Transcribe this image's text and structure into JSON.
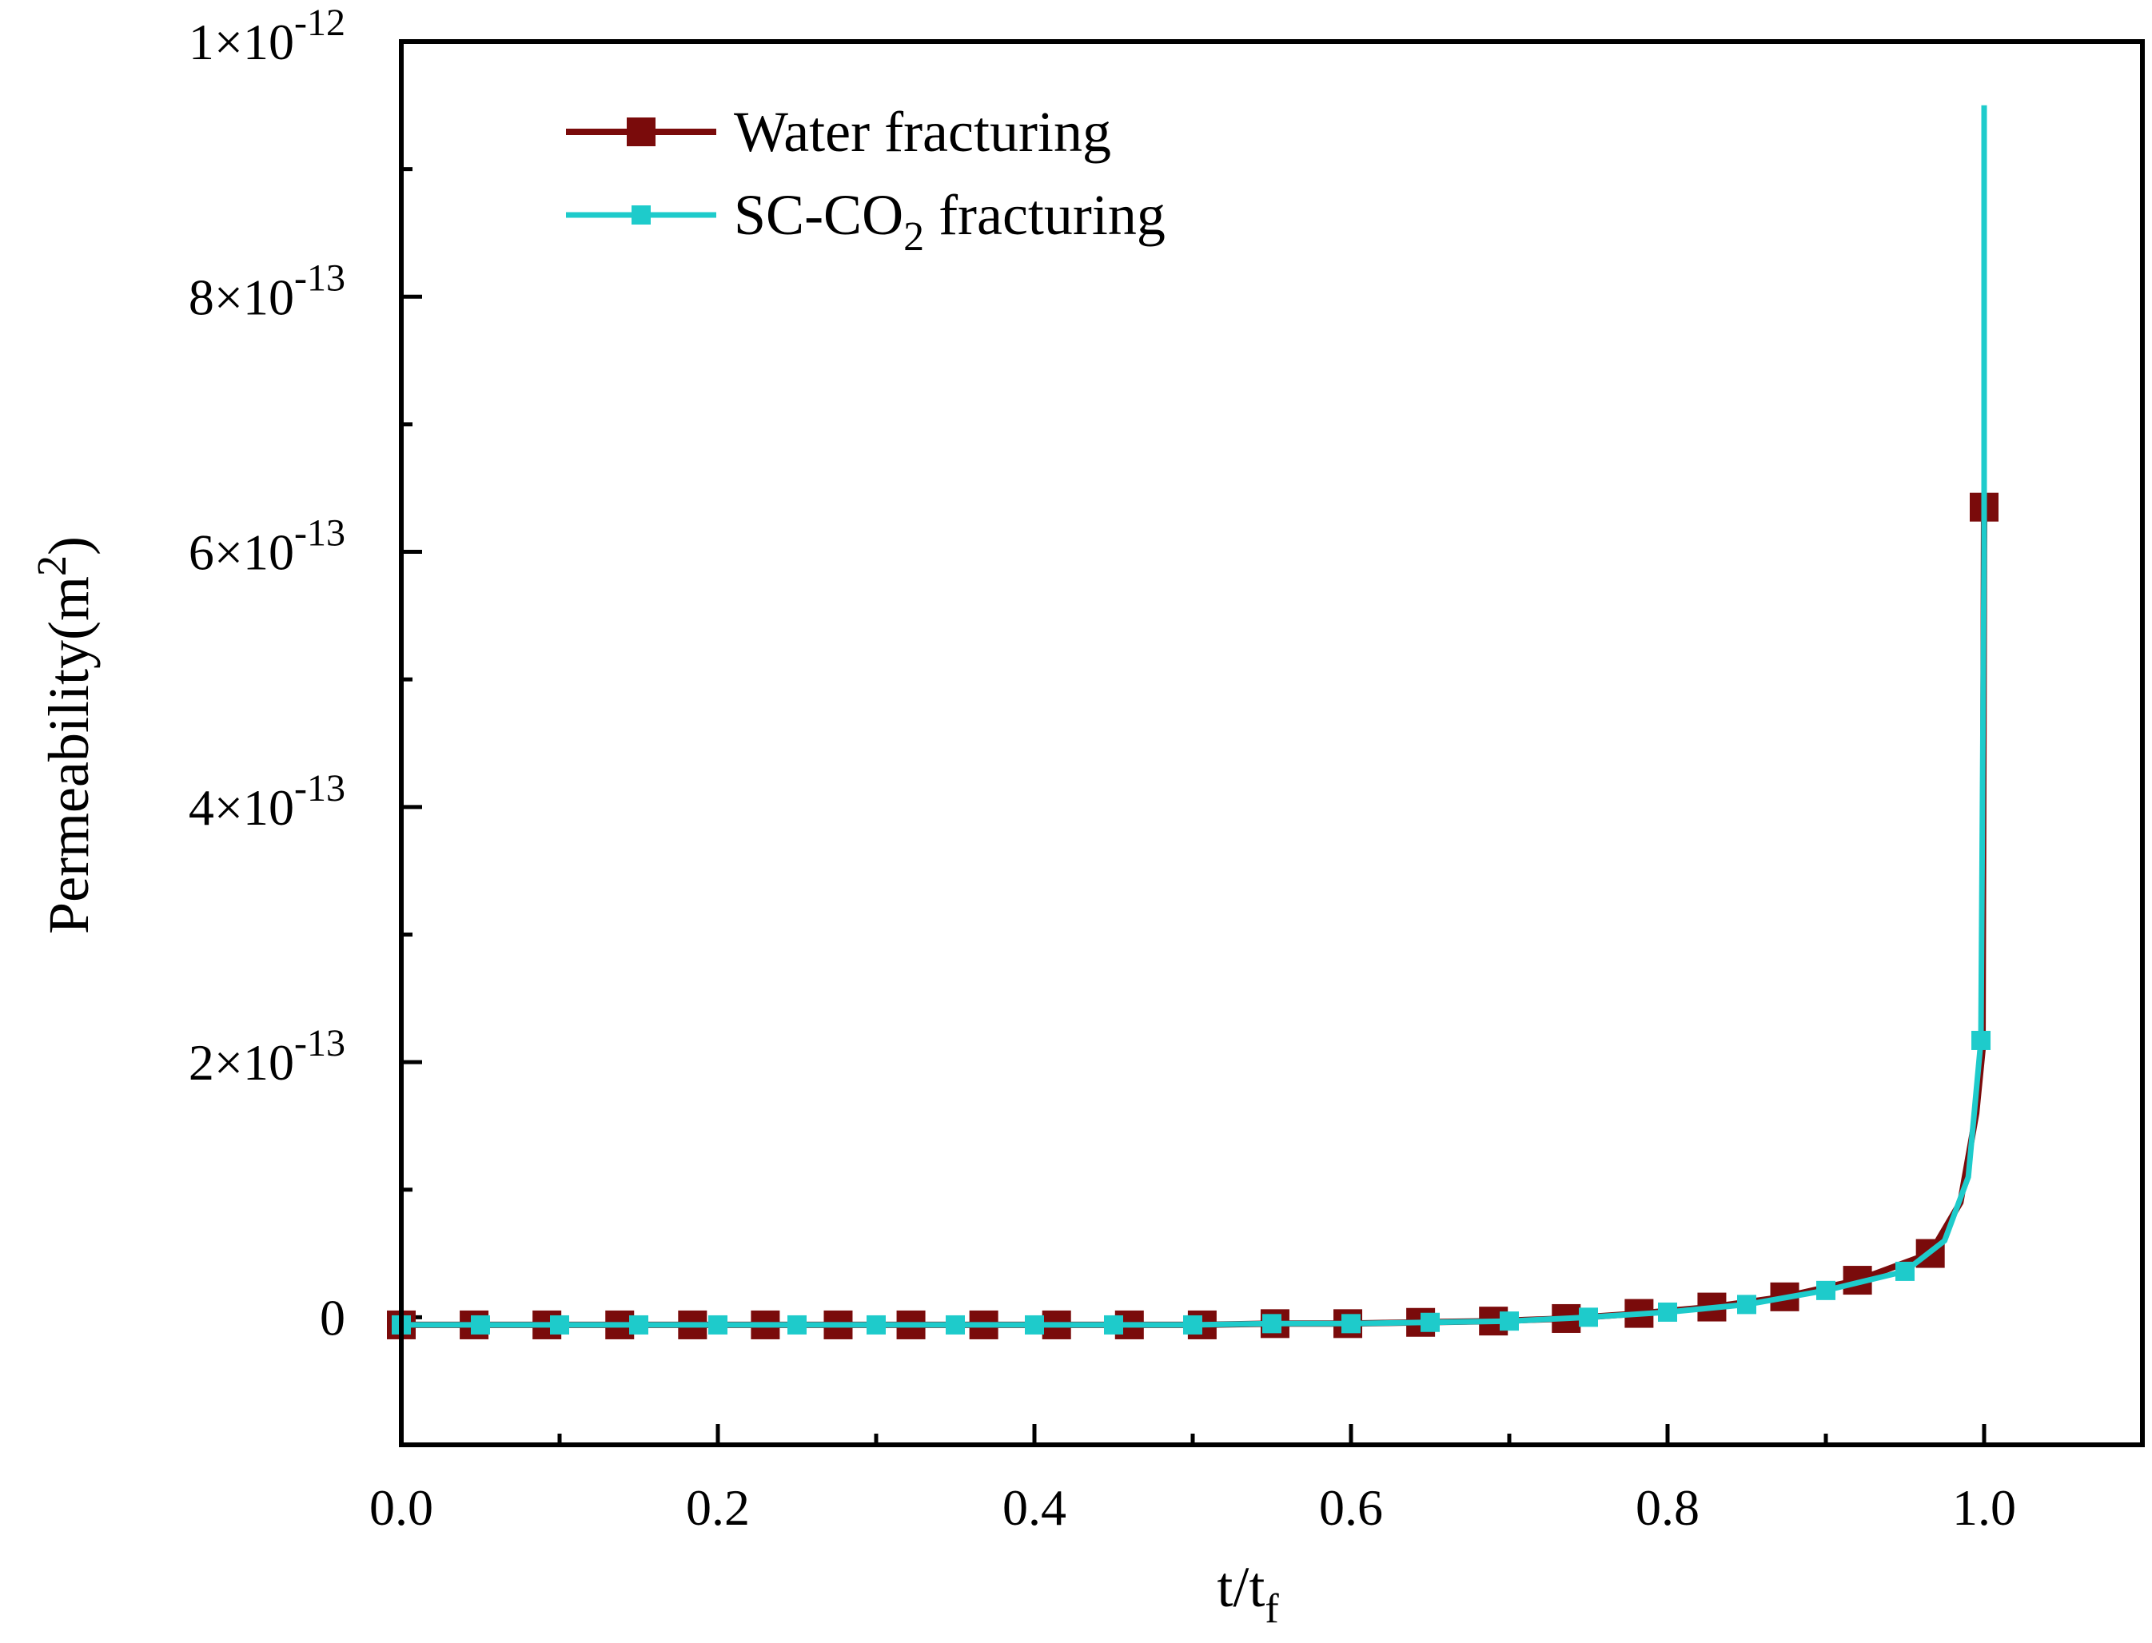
{
  "chart_data": {
    "type": "line",
    "xlabel": {
      "main": "t/t",
      "sub": "f"
    },
    "ylabel": {
      "main": "Permeability(m",
      "sup": "2",
      "end": ")"
    },
    "xlim": [
      0.0,
      1.1
    ],
    "ylim": [
      -1e-13,
      1e-12
    ],
    "x_ticks": [
      0.0,
      0.2,
      0.4,
      0.6,
      0.8,
      1.0
    ],
    "x_tick_labels": [
      "0.0",
      "0.2",
      "0.4",
      "0.6",
      "0.8",
      "1.0"
    ],
    "y_ticks": [
      {
        "value": 0,
        "mantissa": "0",
        "exp": ""
      },
      {
        "value": 2e-13,
        "mantissa": "2×10",
        "exp": "-13"
      },
      {
        "value": 4e-13,
        "mantissa": "4×10",
        "exp": "-13"
      },
      {
        "value": 6e-13,
        "mantissa": "6×10",
        "exp": "-13"
      },
      {
        "value": 8e-13,
        "mantissa": "8×10",
        "exp": "-13"
      },
      {
        "value": 1e-12,
        "mantissa": "1×10",
        "exp": "-12"
      }
    ],
    "legend_position": "top-left",
    "series": [
      {
        "name": "Water fracturing",
        "label_parts": {
          "pre": "Water fracturing",
          "sub": "",
          "post": ""
        },
        "color": "#7a0b0b",
        "marker": "square-large",
        "x": [
          0.0,
          0.046,
          0.092,
          0.138,
          0.184,
          0.23,
          0.276,
          0.322,
          0.368,
          0.414,
          0.46,
          0.506,
          0.552,
          0.598,
          0.644,
          0.69,
          0.736,
          0.782,
          0.828,
          0.874,
          0.92,
          0.966,
          0.985,
          0.995,
          0.999,
          1.0
        ],
        "y": [
          -6e-15,
          -6e-15,
          -6e-15,
          -6e-15,
          -6e-15,
          -6e-15,
          -6e-15,
          -6e-15,
          -6e-15,
          -6e-15,
          -6e-15,
          -6e-15,
          -5e-15,
          -5e-15,
          -4e-15,
          -3e-15,
          -1e-15,
          3e-15,
          8e-15,
          1.6e-14,
          2.9e-14,
          5e-14,
          9e-14,
          1.6e-13,
          2.1e-13,
          6.35e-13
        ],
        "marker_indices": [
          0,
          1,
          2,
          3,
          4,
          5,
          6,
          7,
          8,
          9,
          10,
          11,
          12,
          13,
          14,
          15,
          16,
          17,
          18,
          19,
          20,
          21,
          25
        ]
      },
      {
        "name": "SC-CO2 fracturing",
        "label_parts": {
          "pre": "SC-CO",
          "sub": "2",
          "post": " fracturing"
        },
        "color": "#1ecbcb",
        "marker": "square-small",
        "x": [
          0.0,
          0.05,
          0.1,
          0.15,
          0.2,
          0.25,
          0.3,
          0.35,
          0.4,
          0.45,
          0.5,
          0.55,
          0.6,
          0.65,
          0.7,
          0.75,
          0.8,
          0.85,
          0.9,
          0.95,
          0.975,
          0.99,
          0.998,
          1.0,
          1.0
        ],
        "y": [
          -6e-15,
          -6e-15,
          -6e-15,
          -6e-15,
          -6e-15,
          -6e-15,
          -6e-15,
          -6e-15,
          -6e-15,
          -6e-15,
          -6e-15,
          -5e-15,
          -5e-15,
          -4e-15,
          -3e-15,
          0.0,
          4e-15,
          1e-14,
          2.1e-14,
          3.6e-14,
          6e-14,
          1.1e-13,
          2.17e-13,
          6e-13,
          9.5e-13
        ],
        "marker_indices": [
          0,
          1,
          2,
          3,
          4,
          5,
          6,
          7,
          8,
          9,
          10,
          11,
          12,
          13,
          14,
          15,
          16,
          17,
          18,
          19,
          22
        ]
      }
    ]
  }
}
